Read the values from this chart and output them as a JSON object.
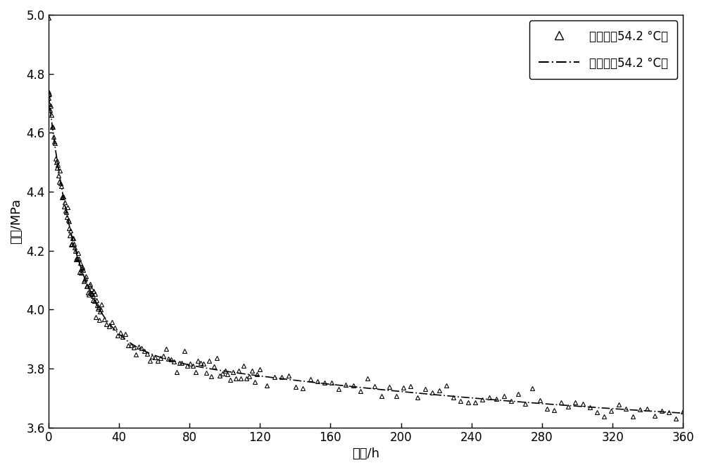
{
  "title": "",
  "xlabel": "时间/h",
  "ylabel": "压力/MPa",
  "xlim": [
    0,
    360
  ],
  "ylim": [
    3.6,
    5.0
  ],
  "xticks": [
    0,
    40,
    80,
    120,
    160,
    200,
    240,
    280,
    320,
    360
  ],
  "yticks": [
    3.6,
    3.8,
    4.0,
    4.2,
    4.4,
    4.6,
    4.8,
    5.0
  ],
  "legend_exp": "实验值（54.2 °C）",
  "legend_fit": "拟合值（54.2 °C）",
  "background_color": "#ffffff",
  "axes_color": "#000000",
  "marker_color": "#000000",
  "line_color": "#000000",
  "figsize": [
    10.0,
    6.67
  ],
  "dpi": 100,
  "A": 1.16,
  "b": 0.018,
  "C": 3.625,
  "D": -0.00085,
  "noise_scale": 0.018,
  "marker_size": 5,
  "marker_edge_width": 0.8,
  "line_width": 1.2,
  "tick_labelsize": 12,
  "label_fontsize": 13,
  "legend_fontsize": 12
}
